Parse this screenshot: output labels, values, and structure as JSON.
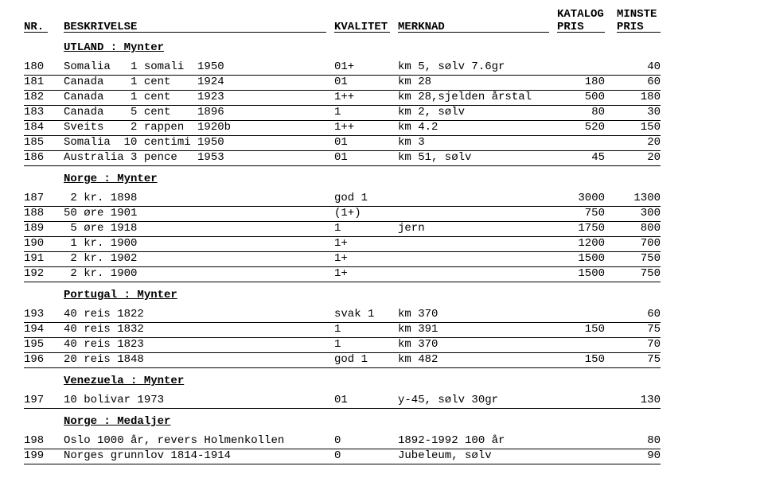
{
  "header": {
    "katalog": "KATALOG",
    "minste": "MINSTE",
    "nr": "NR.",
    "beskrivelse": "BESKRIVELSE",
    "kvalitet": "KVALITET",
    "merknad": "MERKNAD",
    "pris1": "PRIS",
    "pris2": "PRIS"
  },
  "sections": [
    {
      "title": "UTLAND : Mynter",
      "rows": [
        {
          "nr": "180",
          "desc": "Somalia   1 somali  1950",
          "kval": "01+",
          "merk": "km 5, sølv 7.6gr",
          "p1": "",
          "p2": "40"
        },
        {
          "nr": "181",
          "desc": "Canada    1 cent    1924",
          "kval": "01",
          "merk": "km 28",
          "p1": "180",
          "p2": "60"
        },
        {
          "nr": "182",
          "desc": "Canada    1 cent    1923",
          "kval": "1++",
          "merk": "km 28,sjelden årstal",
          "p1": "500",
          "p2": "180"
        },
        {
          "nr": "183",
          "desc": "Canada    5 cent    1896",
          "kval": "1",
          "merk": "km 2, sølv",
          "p1": "80",
          "p2": "30"
        },
        {
          "nr": "184",
          "desc": "Sveits    2 rappen  1920b",
          "kval": "1++",
          "merk": "km 4.2",
          "p1": "520",
          "p2": "150"
        },
        {
          "nr": "185",
          "desc": "Somalia  10 centimi 1950",
          "kval": "01",
          "merk": "km 3",
          "p1": "",
          "p2": "20"
        },
        {
          "nr": "186",
          "desc": "Australia 3 pence   1953",
          "kval": "01",
          "merk": "km 51, sølv",
          "p1": "45",
          "p2": "20"
        }
      ]
    },
    {
      "title": "Norge : Mynter",
      "rows": [
        {
          "nr": "187",
          "desc": " 2 kr. 1898",
          "kval": "god 1",
          "merk": "",
          "p1": "3000",
          "p2": "1300"
        },
        {
          "nr": "188",
          "desc": "50 øre 1901",
          "kval": "(1+)",
          "merk": "",
          "p1": "750",
          "p2": "300"
        },
        {
          "nr": "189",
          "desc": " 5 øre 1918",
          "kval": "1",
          "merk": "jern",
          "p1": "1750",
          "p2": "800"
        },
        {
          "nr": "190",
          "desc": " 1 kr. 1900",
          "kval": "1+",
          "merk": "",
          "p1": "1200",
          "p2": "700"
        },
        {
          "nr": "191",
          "desc": " 2 kr. 1902",
          "kval": "1+",
          "merk": "",
          "p1": "1500",
          "p2": "750"
        },
        {
          "nr": "192",
          "desc": " 2 kr. 1900",
          "kval": "1+",
          "merk": "",
          "p1": "1500",
          "p2": "750"
        }
      ]
    },
    {
      "title": "Portugal : Mynter",
      "rows": [
        {
          "nr": "193",
          "desc": "40 reis 1822",
          "kval": "svak 1",
          "merk": "km 370",
          "p1": "",
          "p2": "60"
        },
        {
          "nr": "194",
          "desc": "40 reis 1832",
          "kval": "1",
          "merk": "km 391",
          "p1": "150",
          "p2": "75"
        },
        {
          "nr": "195",
          "desc": "40 reis 1823",
          "kval": "1",
          "merk": "km 370",
          "p1": "",
          "p2": "70"
        },
        {
          "nr": "196",
          "desc": "20 reis 1848",
          "kval": "god 1",
          "merk": "km 482",
          "p1": "150",
          "p2": "75"
        }
      ]
    },
    {
      "title": "Venezuela : Mynter",
      "rows": [
        {
          "nr": "197",
          "desc": "10 bolivar 1973",
          "kval": "01",
          "merk": "y-45, sølv 30gr",
          "p1": "",
          "p2": "130"
        }
      ]
    },
    {
      "title": "Norge : Medaljer",
      "rows": [
        {
          "nr": "198",
          "desc": "Oslo 1000 år, revers Holmenkollen",
          "kval": "0",
          "merk": "1892-1992 100 år",
          "p1": "",
          "p2": "80"
        },
        {
          "nr": "199",
          "desc": "Norges grunnlov 1814-1914",
          "kval": "0",
          "merk": "Jubeleum, sølv",
          "p1": "",
          "p2": "90"
        }
      ]
    }
  ]
}
